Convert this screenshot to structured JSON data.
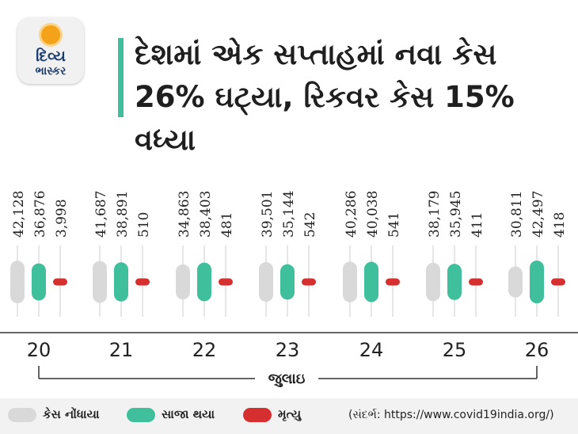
{
  "logo": {
    "line1": "દિવ્ય",
    "line2": "ભાસ્કર"
  },
  "headline": "દેશમાં એક સપ્તાહમાં નવા કેસ 26% ઘટ્યા, રિકવર કેસ 15% વધ્યા",
  "colors": {
    "cases": "#d9d9d9",
    "recovered": "#3fbf9c",
    "deaths": "#d62f2f",
    "accent": "#3fbf9c"
  },
  "chart_data": {
    "type": "bar",
    "categories": [
      "20",
      "21",
      "22",
      "23",
      "24",
      "25",
      "26"
    ],
    "series": [
      {
        "name": "કેસ નોંધાયા",
        "labels": [
          "42,128",
          "41,687",
          "34,863",
          "39,501",
          "40,286",
          "38,179",
          "30,811"
        ],
        "values": [
          42128,
          41687,
          34863,
          39501,
          40286,
          38179,
          30811
        ]
      },
      {
        "name": "સાજા થયા",
        "labels": [
          "36,876",
          "38,891",
          "38,403",
          "35,144",
          "40,038",
          "35,945",
          "42,497"
        ],
        "values": [
          36876,
          38891,
          38403,
          35144,
          40038,
          35945,
          42497
        ]
      },
      {
        "name": "મૃત્યુ",
        "labels": [
          "3,998",
          "510",
          "481",
          "542",
          "541",
          "411",
          "418"
        ],
        "values": [
          3998,
          510,
          481,
          542,
          541,
          411,
          418
        ]
      }
    ],
    "xlabel": "જુલાઇ",
    "legend_position": "bottom-left"
  },
  "source": "(સંદર્ભ: https://www.covid19india.org/)"
}
